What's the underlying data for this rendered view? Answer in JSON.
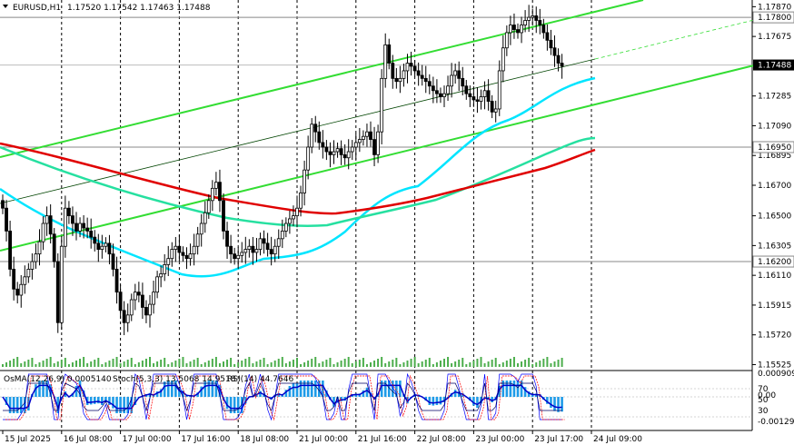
{
  "header": {
    "symbol": "EURUSD,H1",
    "ohlc": "1.17520 1.17542 1.17463 1.17488"
  },
  "indicator_header": {
    "osma": "OsMA(12,26,9) 0.0005140",
    "stoch": "Stoch(5,3,3) 13.5068 14.9518",
    "rsi": "RSI(14) 44.7646"
  },
  "colors": {
    "background": "#ffffff",
    "candle": "#000000",
    "ma_fast": "#00e5ff",
    "ma_mid": "#26e0a0",
    "ma_slow": "#e00000",
    "channel": "#33dd33",
    "channel_mid": "#004400",
    "osma": "#1e9be8",
    "signal": "#0000cc",
    "stoch_main": "#0000ff",
    "stoch_signal": "#ff0000",
    "rsi": "#000066",
    "price_tag": "#000000"
  },
  "chart_data": {
    "type": "candlestick",
    "symbol": "EURUSD",
    "timeframe": "H1",
    "y_range": [
      1.1551,
      1.1789
    ],
    "y_ticks": [
      "1.17870",
      "1.17675",
      "1.17285",
      "1.17090",
      "1.16895",
      "1.16700",
      "1.16500",
      "1.16305",
      "1.16110",
      "1.15915",
      "1.15720",
      "1.15525"
    ],
    "x_ticks": [
      "15 Jul 2025",
      "16 Jul 08:00",
      "17 Jul 00:00",
      "17 Jul 16:00",
      "18 Jul 08:00",
      "21 Jul 00:00",
      "21 Jul 16:00",
      "22 Jul 08:00",
      "23 Jul 00:00",
      "23 Jul 17:00",
      "24 Jul 09:00"
    ],
    "x_tick_index": [
      0,
      16,
      32,
      48,
      64,
      80,
      96,
      112,
      128,
      144,
      160
    ],
    "current_price": "1.17488",
    "horizontal_levels": [
      "1.17800",
      "1.16950",
      "1.16200"
    ],
    "close": [
      1.1655,
      1.164,
      1.1615,
      1.1602,
      1.1598,
      1.1605,
      1.161,
      1.1615,
      1.162,
      1.1625,
      1.1633,
      1.1645,
      1.165,
      1.1638,
      1.162,
      1.158,
      1.163,
      1.1655,
      1.165,
      1.1645,
      1.164,
      1.1645,
      1.1642,
      1.164,
      1.1636,
      1.1632,
      1.1628,
      1.163,
      1.1632,
      1.1625,
      1.1615,
      1.16,
      1.1588,
      1.158,
      1.1585,
      1.1595,
      1.16,
      1.1598,
      1.159,
      1.1585,
      1.1592,
      1.16,
      1.161,
      1.1612,
      1.1618,
      1.1622,
      1.1628,
      1.163,
      1.1626,
      1.1624,
      1.1622,
      1.1625,
      1.163,
      1.1638,
      1.1645,
      1.1652,
      1.166,
      1.1668,
      1.1672,
      1.166,
      1.164,
      1.163,
      1.1625,
      1.1622,
      1.1624,
      1.1626,
      1.1628,
      1.163,
      1.1626,
      1.1628,
      1.1635,
      1.1632,
      1.1628,
      1.1625,
      1.163,
      1.1635,
      1.164,
      1.1645,
      1.1648,
      1.165,
      1.1655,
      1.1665,
      1.168,
      1.1695,
      1.171,
      1.1705,
      1.1698,
      1.1695,
      1.1692,
      1.169,
      1.1692,
      1.1694,
      1.169,
      1.1688,
      1.1692,
      1.1695,
      1.1698,
      1.17,
      1.1702,
      1.1705,
      1.17,
      1.169,
      1.1705,
      1.174,
      1.1762,
      1.175,
      1.174,
      1.1738,
      1.174,
      1.1745,
      1.175,
      1.1748,
      1.1745,
      1.1742,
      1.174,
      1.1738,
      1.1735,
      1.1732,
      1.173,
      1.1728,
      1.173,
      1.1735,
      1.1742,
      1.1745,
      1.174,
      1.1735,
      1.173,
      1.1728,
      1.1726,
      1.1725,
      1.1728,
      1.1732,
      1.1725,
      1.1718,
      1.172,
      1.1745,
      1.176,
      1.177,
      1.1775,
      1.1772,
      1.177,
      1.1775,
      1.1778,
      1.178,
      1.1781,
      1.1778,
      1.1775,
      1.177,
      1.1765,
      1.176,
      1.1755,
      1.175,
      1.1748
    ]
  }
}
